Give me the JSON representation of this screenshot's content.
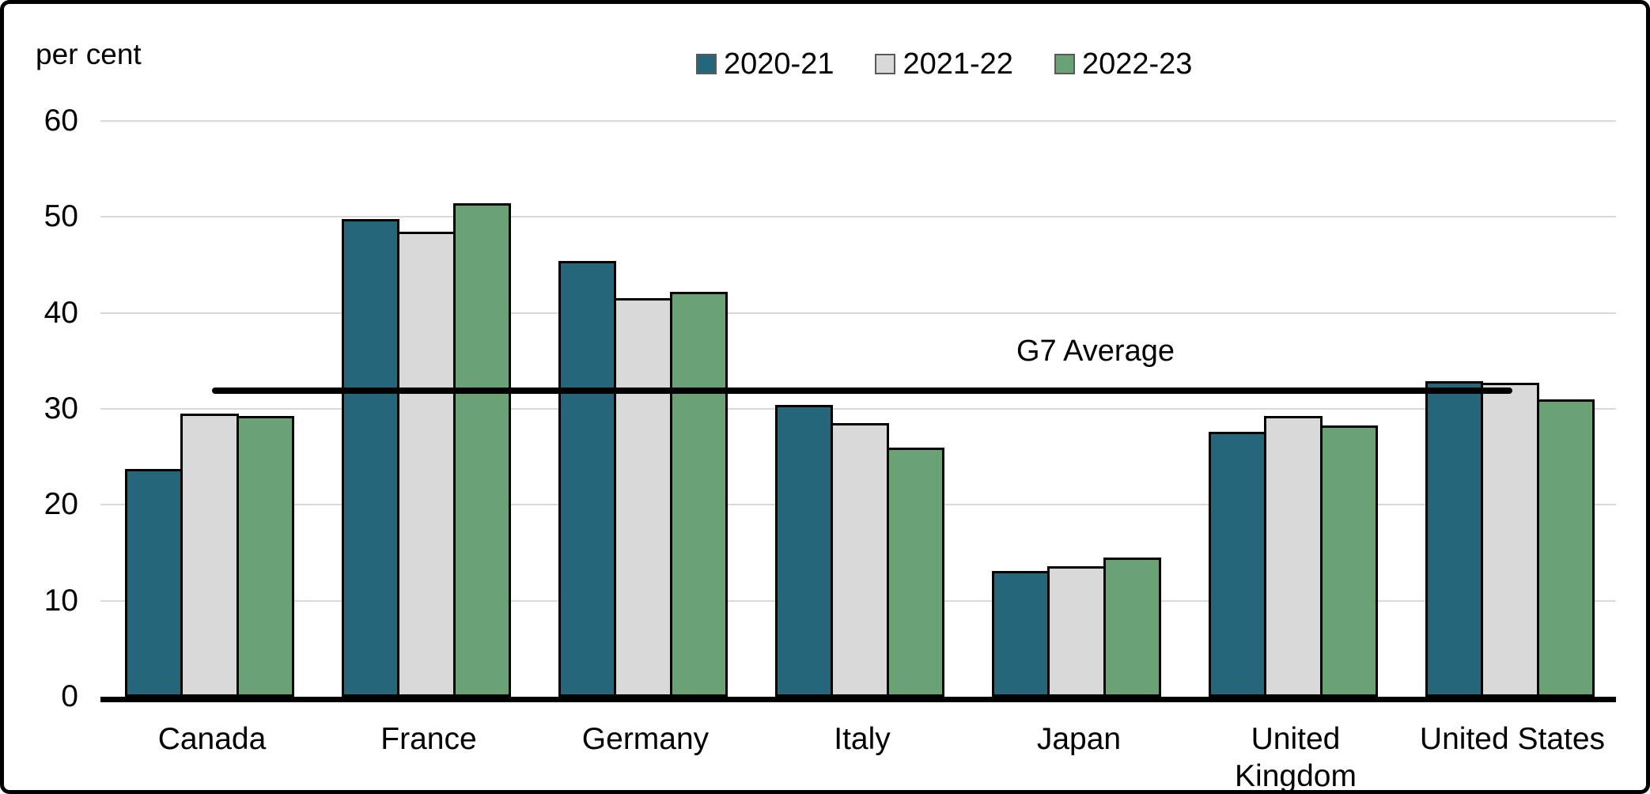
{
  "chart_data": {
    "type": "bar",
    "title": "",
    "unit": "per cent",
    "categories": [
      "Canada",
      "France",
      "Germany",
      "Italy",
      "Japan",
      "United\nKingdom",
      "United States"
    ],
    "series": [
      {
        "name": "2020-21",
        "color": "#26667A",
        "values": [
          23.7,
          49.8,
          45.4,
          30.4,
          13.1,
          27.6,
          32.9
        ]
      },
      {
        "name": "2021-22",
        "color": "#D9D9D9",
        "values": [
          29.5,
          48.5,
          41.5,
          28.5,
          13.6,
          29.3,
          32.7
        ]
      },
      {
        "name": "2022-23",
        "color": "#6BA275",
        "values": [
          29.3,
          51.4,
          42.2,
          26.0,
          14.5,
          28.3,
          31.0
        ]
      }
    ],
    "average_line": {
      "label": "G7 Average",
      "value": 31.9,
      "color": "#000000"
    },
    "ylim": [
      0,
      60
    ],
    "ytick_step": 10,
    "yticks": [
      0,
      10,
      20,
      30,
      40,
      50,
      60
    ],
    "grid": "horizontal",
    "legend_position": "top-center",
    "colors": {
      "grid": "#D9D9D9",
      "axis": "#000000",
      "bar_border": "#000000",
      "text": "#000000",
      "background": "#FFFFFF"
    }
  }
}
